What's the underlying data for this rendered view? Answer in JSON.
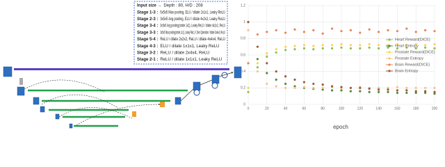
{
  "text_box": {
    "lines": [
      {
        "label": "Input size →",
        "text": "Depth : 80, H/D : 208"
      },
      {
        "label": "Stage 1-3 :",
        "text": "5x5x5 Max pooling, ELU / dilate 2x1x1, Leaky ReLU"
      },
      {
        "label": "Stage 2-3 :",
        "text": "3x5x5 Avg pooling, ELU / dilate 4x2x2, Leaky ReLU"
      },
      {
        "label": "Stage 3-4 :",
        "text": "3x5x5 Avg pooling(stride 1x2), Leaky ReLU / dilate 4x2x2, ReLU"
      },
      {
        "label": "Stage 3-3 :",
        "text": "3x5x5 Max pooling(stride 1x1), Leaky ReLU / Zero Operation / dilate 3x4x4, ReLU"
      },
      {
        "label": "Stage 5-4 :",
        "text": "ReLU / dilate 2x2x2, ReLU / dilate 4x4x4, ReLU"
      },
      {
        "label": "Stage 4-3 :",
        "text": "ELU / dilate 1x1x1, Leaky ReLU"
      },
      {
        "label": "Stage 3-2 :",
        "text": "ReLU / dilate 2x4x4, ReLU"
      },
      {
        "label": "Stage 2-1 :",
        "text": "ReLU / dilate 1x1x1, Leaky ReLU"
      }
    ]
  },
  "chart_data": {
    "type": "scatter",
    "xlabel": "epoch",
    "x": [
      0,
      10,
      20,
      30,
      40,
      50,
      60,
      70,
      80,
      90,
      100,
      110,
      120,
      130,
      140,
      150,
      160,
      170,
      180,
      190,
      200
    ],
    "xlim": [
      0,
      200
    ],
    "xticks": [
      0,
      20,
      40,
      60,
      80,
      100,
      120,
      140,
      160,
      180,
      200
    ],
    "ylim": [
      0,
      1.2
    ],
    "yticks": [
      0,
      0.2,
      0.4,
      0.6,
      0.8,
      1,
      1.2
    ],
    "grid": true,
    "legend": "right",
    "series": [
      {
        "name": "Heart Reward(DICE)",
        "color": "#8cc152",
        "values": [
          0.15,
          0.45,
          0.58,
          0.63,
          0.66,
          0.67,
          0.68,
          0.67,
          0.68,
          0.68,
          0.69,
          0.68,
          0.68,
          0.69,
          0.68,
          0.69,
          0.68,
          0.69,
          0.68,
          0.69,
          0.68
        ]
      },
      {
        "name": "Heart Entropy",
        "color": "#4e8a3a",
        "values": [
          1.0,
          0.55,
          0.38,
          0.3,
          0.25,
          0.22,
          0.2,
          0.19,
          0.18,
          0.17,
          0.17,
          0.16,
          0.16,
          0.15,
          0.15,
          0.15,
          0.14,
          0.14,
          0.14,
          0.14,
          0.13
        ]
      },
      {
        "name": "Prostate Reward(DICE)",
        "color": "#ffd34d",
        "values": [
          0.2,
          0.5,
          0.62,
          0.67,
          0.7,
          0.71,
          0.72,
          0.71,
          0.72,
          0.72,
          0.73,
          0.72,
          0.72,
          0.73,
          0.72,
          0.72,
          0.73,
          0.72,
          0.73,
          0.72,
          0.73
        ]
      },
      {
        "name": "Prostate Entropy",
        "color": "#f5c387",
        "values": [
          0.9,
          0.4,
          0.25,
          0.22,
          0.2,
          0.2,
          0.21,
          0.2,
          0.2,
          0.21,
          0.2,
          0.2,
          0.21,
          0.2,
          0.2,
          0.2,
          0.21,
          0.2,
          0.2,
          0.2,
          0.2
        ]
      },
      {
        "name": "Brain Reward(DICE)",
        "color": "#e8845a",
        "values": [
          0.5,
          0.85,
          0.88,
          0.9,
          0.87,
          0.91,
          0.88,
          0.9,
          0.86,
          0.92,
          0.89,
          0.9,
          0.87,
          0.91,
          0.88,
          0.9,
          0.89,
          0.92,
          0.88,
          0.9,
          0.89
        ]
      },
      {
        "name": "Brain Entropy",
        "color": "#9c5a3c",
        "values": [
          1.0,
          0.7,
          0.5,
          0.4,
          0.34,
          0.3,
          0.27,
          0.25,
          0.24,
          0.22,
          0.21,
          0.2,
          0.2,
          0.19,
          0.18,
          0.18,
          0.17,
          0.17,
          0.16,
          0.16,
          0.15
        ]
      }
    ]
  }
}
